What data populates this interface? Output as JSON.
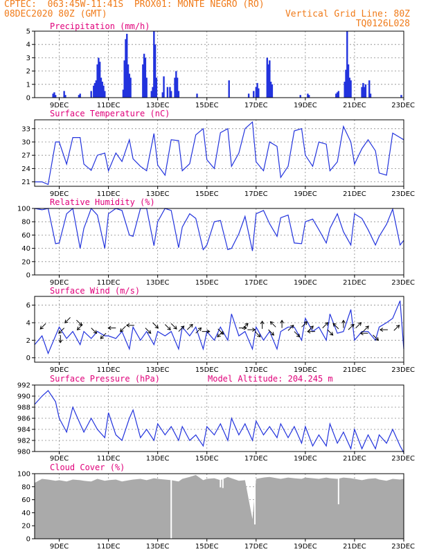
{
  "header": {
    "line1_left": "CPTEC:  063:45W-11:41S  PROX01: MONTE NEGRO (RO)",
    "line2_left": "08DEC2020 80Z (GMT)",
    "line2_right": "Vertical Grid Line: 80Z",
    "line3_right": "TQ0126L028"
  },
  "colors": {
    "header": "#f07b1a",
    "title": "#e0007a",
    "series": "#2233dd",
    "cloud": "#aaaaaa",
    "wind_arrow": "#000000"
  },
  "x_axis": {
    "start_day": 8,
    "end_day": 23,
    "date_labels": [
      "9DEC",
      "11DEC",
      "13DEC",
      "15DEC",
      "17DEC",
      "19DEC",
      "21DEC",
      "23DEC"
    ],
    "label_days": [
      9,
      11,
      13,
      15,
      17,
      19,
      21,
      23
    ]
  },
  "chart_data": [
    {
      "type": "bar",
      "title": "Precipitation (mm/h)",
      "ylim": [
        0,
        5
      ],
      "yticks": [
        0,
        1,
        2,
        3,
        4,
        5
      ],
      "units": "mm/h",
      "events": [
        [
          8.75,
          0.3
        ],
        [
          8.8,
          0.4
        ],
        [
          8.85,
          0.2
        ],
        [
          9.2,
          0.5
        ],
        [
          9.25,
          0.2
        ],
        [
          9.8,
          0.2
        ],
        [
          9.85,
          0.3
        ],
        [
          10.3,
          0.5
        ],
        [
          10.4,
          0.9
        ],
        [
          10.45,
          1.1
        ],
        [
          10.5,
          1.3
        ],
        [
          10.55,
          2.5
        ],
        [
          10.6,
          3.0
        ],
        [
          10.65,
          2.7
        ],
        [
          10.7,
          1.5
        ],
        [
          10.75,
          1.2
        ],
        [
          10.8,
          0.9
        ],
        [
          10.85,
          0.5
        ],
        [
          11.6,
          0.6
        ],
        [
          11.65,
          2.8
        ],
        [
          11.7,
          4.4
        ],
        [
          11.75,
          4.8
        ],
        [
          11.8,
          2.5
        ],
        [
          11.85,
          1.8
        ],
        [
          11.9,
          1.5
        ],
        [
          12.4,
          2.5
        ],
        [
          12.45,
          3.3
        ],
        [
          12.5,
          3.0
        ],
        [
          12.55,
          1.5
        ],
        [
          12.75,
          0.5
        ],
        [
          12.8,
          0.8
        ],
        [
          12.85,
          5.0
        ],
        [
          12.9,
          4.0
        ],
        [
          12.95,
          1.5
        ],
        [
          13.2,
          0.4
        ],
        [
          13.25,
          1.6
        ],
        [
          13.4,
          0.8
        ],
        [
          13.5,
          0.8
        ],
        [
          13.55,
          0.5
        ],
        [
          13.7,
          1.5
        ],
        [
          13.75,
          2.0
        ],
        [
          13.8,
          1.5
        ],
        [
          13.85,
          0.5
        ],
        [
          14.6,
          0.3
        ],
        [
          15.9,
          1.3
        ],
        [
          16.7,
          0.3
        ],
        [
          16.9,
          0.5
        ],
        [
          17.0,
          0.8
        ],
        [
          17.05,
          1.1
        ],
        [
          17.1,
          0.7
        ],
        [
          17.45,
          3.0
        ],
        [
          17.5,
          2.5
        ],
        [
          17.55,
          2.8
        ],
        [
          17.6,
          1.2
        ],
        [
          17.65,
          1.0
        ],
        [
          18.8,
          0.2
        ],
        [
          19.1,
          0.3
        ],
        [
          19.15,
          0.2
        ],
        [
          20.25,
          0.3
        ],
        [
          20.3,
          0.4
        ],
        [
          20.35,
          0.5
        ],
        [
          20.6,
          1.2
        ],
        [
          20.65,
          2.1
        ],
        [
          20.7,
          5.0
        ],
        [
          20.75,
          2.5
        ],
        [
          20.8,
          1.5
        ],
        [
          20.85,
          1.3
        ],
        [
          21.3,
          0.8
        ],
        [
          21.35,
          1.1
        ],
        [
          21.4,
          0.8
        ],
        [
          21.45,
          1.0
        ],
        [
          21.6,
          1.3
        ],
        [
          21.65,
          0.3
        ],
        [
          22.9,
          0.2
        ]
      ]
    },
    {
      "type": "line",
      "title": "Surface Temperature (nC)",
      "ylim": [
        20,
        35
      ],
      "yticks": [
        21,
        24,
        27,
        30,
        33
      ],
      "units": "nC",
      "x": [
        8.0,
        8.3,
        8.55,
        8.85,
        9.0,
        9.3,
        9.55,
        9.85,
        10.0,
        10.3,
        10.55,
        10.85,
        11.0,
        11.3,
        11.55,
        11.85,
        12.0,
        12.3,
        12.55,
        12.85,
        13.0,
        13.3,
        13.55,
        13.85,
        14.0,
        14.3,
        14.55,
        14.85,
        15.0,
        15.3,
        15.55,
        15.85,
        16.0,
        16.3,
        16.55,
        16.85,
        17.0,
        17.3,
        17.55,
        17.85,
        18.0,
        18.3,
        18.55,
        18.85,
        19.0,
        19.3,
        19.55,
        19.85,
        20.0,
        20.3,
        20.55,
        20.85,
        21.0,
        21.3,
        21.55,
        21.85,
        22.0,
        22.3,
        22.55,
        22.85,
        23.0
      ],
      "values": [
        21,
        21,
        20.4,
        30,
        30,
        25,
        31,
        31,
        25,
        23.6,
        27,
        27.5,
        23.5,
        27.5,
        25.6,
        30.5,
        26.2,
        24.5,
        23.5,
        31.9,
        24.8,
        22.5,
        30.5,
        30.3,
        23.5,
        25.1,
        31.6,
        33,
        26,
        24,
        32.1,
        33,
        24.5,
        27.5,
        33,
        34.5,
        25.5,
        23.5,
        30,
        29,
        22,
        24.5,
        32.5,
        33,
        27,
        24.5,
        30,
        29.5,
        23.5,
        25.5,
        33.5,
        30,
        25,
        28.5,
        30.5,
        28,
        23,
        22.5,
        32,
        31,
        30.5
      ]
    },
    {
      "type": "line",
      "title": "Relative Humidity (%)",
      "ylim": [
        0,
        100
      ],
      "yticks": [
        0,
        20,
        40,
        60,
        80,
        100
      ],
      "units": "%",
      "x": [
        8.0,
        8.3,
        8.55,
        8.85,
        9.0,
        9.3,
        9.55,
        9.85,
        10.0,
        10.3,
        10.55,
        10.85,
        11.0,
        11.3,
        11.55,
        11.85,
        12.0,
        12.3,
        12.55,
        12.85,
        13.0,
        13.3,
        13.55,
        13.85,
        14.0,
        14.3,
        14.55,
        14.85,
        15.0,
        15.3,
        15.55,
        15.85,
        16.0,
        16.3,
        16.55,
        16.85,
        17.0,
        17.3,
        17.55,
        17.85,
        18.0,
        18.3,
        18.55,
        18.85,
        19.0,
        19.3,
        19.55,
        19.85,
        20.0,
        20.3,
        20.55,
        20.85,
        21.0,
        21.3,
        21.55,
        21.85,
        22.0,
        22.3,
        22.55,
        22.85,
        23.0
      ],
      "values": [
        100,
        98,
        100,
        47,
        48,
        92,
        100,
        40,
        70,
        100,
        90,
        40,
        92,
        100,
        97,
        60,
        58,
        100,
        100,
        44,
        80,
        100,
        97,
        41,
        72,
        92,
        85,
        38,
        45,
        80,
        82,
        38,
        40,
        62,
        88,
        36,
        92,
        97,
        77,
        58,
        86,
        90,
        48,
        47,
        80,
        84,
        68,
        48,
        70,
        92,
        65,
        45,
        92,
        85,
        68,
        45,
        58,
        76,
        99,
        45,
        52
      ]
    },
    {
      "type": "line",
      "title": "Surface Wind (m/s)",
      "ylim": [
        -0.5,
        7
      ],
      "yticks": [
        0,
        2,
        4,
        6
      ],
      "units": "m/s",
      "x": [
        8.0,
        8.3,
        8.55,
        8.85,
        9.0,
        9.3,
        9.55,
        9.85,
        10.0,
        10.3,
        10.55,
        10.85,
        11.0,
        11.3,
        11.55,
        11.85,
        12.0,
        12.3,
        12.55,
        12.85,
        13.0,
        13.3,
        13.55,
        13.85,
        14.0,
        14.3,
        14.55,
        14.85,
        15.0,
        15.3,
        15.55,
        15.85,
        16.0,
        16.3,
        16.55,
        16.85,
        17.0,
        17.3,
        17.55,
        17.85,
        18.0,
        18.3,
        18.55,
        18.85,
        19.0,
        19.3,
        19.55,
        19.85,
        20.0,
        20.3,
        20.55,
        20.85,
        21.0,
        21.3,
        21.55,
        21.85,
        22.0,
        22.3,
        22.55,
        22.85,
        23.0
      ],
      "values": [
        1.5,
        2.5,
        0.5,
        2.5,
        3.5,
        2.2,
        3.0,
        1.5,
        3.0,
        2.2,
        3.0,
        2.5,
        2.5,
        2.2,
        3.0,
        1.0,
        3.5,
        2.0,
        3.0,
        1.5,
        3.0,
        2.5,
        3.0,
        1.0,
        3.5,
        2.5,
        3.5,
        1.0,
        3.0,
        2.0,
        3.5,
        2.0,
        5.0,
        2.5,
        3.0,
        1.0,
        3.5,
        2.0,
        3.0,
        1.0,
        3.0,
        3.5,
        3.5,
        2.0,
        4.5,
        3.0,
        3.5,
        2.0,
        5.0,
        2.8,
        3.0,
        5.5,
        2.0,
        3.0,
        3.0,
        2.0,
        3.5,
        4.0,
        4.5,
        6.5,
        1.0
      ],
      "arrows": [
        [
          8.45,
          3.9,
          -1,
          1
        ],
        [
          9.05,
          2.6,
          0,
          1
        ],
        [
          9.2,
          3.4,
          -1,
          1
        ],
        [
          9.45,
          4.6,
          -1,
          1
        ],
        [
          9.7,
          4.3,
          1,
          1
        ],
        [
          9.95,
          3.8,
          -1,
          1
        ],
        [
          10.3,
          3.4,
          1,
          1
        ],
        [
          10.9,
          2.8,
          -1,
          1
        ],
        [
          11.3,
          3.4,
          -1,
          0
        ],
        [
          11.7,
          3.6,
          -1,
          1
        ],
        [
          12.05,
          3.7,
          -1,
          0
        ],
        [
          12.5,
          3.4,
          1,
          1
        ],
        [
          12.8,
          4.0,
          1,
          1
        ],
        [
          13.3,
          3.8,
          1,
          1
        ],
        [
          13.55,
          3.9,
          1,
          1
        ],
        [
          13.85,
          3.0,
          1,
          -1
        ],
        [
          14.2,
          3.2,
          1,
          -1
        ],
        [
          14.55,
          2.8,
          1,
          -1
        ],
        [
          14.8,
          3.0,
          1,
          0
        ],
        [
          15.45,
          3.3,
          1,
          1
        ],
        [
          15.65,
          3.0,
          -1,
          1
        ],
        [
          16.3,
          3.4,
          1,
          0
        ],
        [
          16.45,
          3.3,
          1,
          -1
        ],
        [
          16.65,
          3.2,
          1,
          0
        ],
        [
          16.95,
          3.0,
          1,
          1
        ],
        [
          17.25,
          3.3,
          0,
          -1
        ],
        [
          17.5,
          3.2,
          1,
          1
        ],
        [
          17.8,
          3.5,
          -1,
          -1
        ],
        [
          18.05,
          3.4,
          0,
          -1
        ],
        [
          18.3,
          3.1,
          1,
          -1
        ],
        [
          18.55,
          3.0,
          1,
          1
        ],
        [
          18.85,
          3.5,
          1,
          -1
        ],
        [
          19.1,
          3.0,
          1,
          -1
        ],
        [
          19.4,
          3.0,
          -1,
          0
        ],
        [
          19.7,
          3.4,
          1,
          -1
        ],
        [
          19.9,
          3.2,
          1,
          1
        ],
        [
          20.35,
          3.3,
          -1,
          -1
        ],
        [
          20.55,
          3.4,
          0,
          -1
        ],
        [
          20.75,
          3.2,
          1,
          -1
        ],
        [
          21.05,
          3.4,
          1,
          -1
        ],
        [
          21.35,
          3.0,
          1,
          -1
        ],
        [
          21.55,
          2.8,
          -1,
          0
        ],
        [
          21.75,
          2.6,
          1,
          1
        ],
        [
          22.35,
          3.2,
          -1,
          0
        ],
        [
          22.6,
          3.1,
          1,
          -1
        ]
      ]
    },
    {
      "type": "line",
      "title": "Surface Pressure (hPa)",
      "subtitle": "Model Altitude: 204.245 m",
      "ylim": [
        980,
        992
      ],
      "yticks": [
        980,
        982,
        984,
        986,
        988,
        990,
        992
      ],
      "units": "hPa",
      "x": [
        8.0,
        8.3,
        8.55,
        8.85,
        9.0,
        9.3,
        9.55,
        9.85,
        10.0,
        10.3,
        10.55,
        10.85,
        11.0,
        11.3,
        11.55,
        11.85,
        12.0,
        12.3,
        12.55,
        12.85,
        13.0,
        13.3,
        13.55,
        13.85,
        14.0,
        14.3,
        14.55,
        14.85,
        15.0,
        15.3,
        15.55,
        15.85,
        16.0,
        16.3,
        16.55,
        16.85,
        17.0,
        17.3,
        17.55,
        17.85,
        18.0,
        18.3,
        18.55,
        18.85,
        19.0,
        19.3,
        19.55,
        19.85,
        20.0,
        20.3,
        20.55,
        20.85,
        21.0,
        21.3,
        21.55,
        21.85,
        22.0,
        22.3,
        22.55,
        22.85,
        23.0
      ],
      "values": [
        988.5,
        990,
        991,
        989,
        986,
        983.5,
        988,
        985,
        983.5,
        986,
        984,
        982.5,
        987,
        983,
        982,
        986,
        987.5,
        982.5,
        984,
        982,
        985,
        983,
        984.5,
        982,
        984.5,
        982,
        983,
        981,
        984.5,
        983,
        985,
        982,
        986,
        983,
        985,
        982,
        985.5,
        983,
        984.5,
        982.5,
        985,
        982.5,
        984.5,
        981.5,
        984.5,
        981,
        983,
        981,
        985,
        981.5,
        983.5,
        980.5,
        984,
        980.5,
        983,
        980.5,
        983,
        981.5,
        984,
        981,
        979.8
      ]
    },
    {
      "type": "area",
      "title": "Cloud Cover (%)",
      "ylim": [
        0,
        100
      ],
      "yticks": [
        0,
        20,
        40,
        60,
        80,
        100
      ],
      "units": "%",
      "x": [
        8.0,
        8.3,
        8.55,
        8.85,
        9.0,
        9.3,
        9.55,
        9.85,
        10.0,
        10.3,
        10.55,
        10.85,
        11.0,
        11.3,
        11.55,
        11.85,
        12.0,
        12.3,
        12.55,
        12.85,
        13.0,
        13.3,
        13.55,
        13.85,
        14.0,
        14.3,
        14.55,
        14.85,
        15.0,
        15.3,
        15.55,
        15.85,
        16.0,
        16.3,
        16.55,
        16.85,
        17.0,
        17.3,
        17.55,
        17.85,
        18.0,
        18.3,
        18.55,
        18.85,
        19.0,
        19.3,
        19.55,
        19.85,
        20.0,
        20.3,
        20.55,
        20.85,
        21.0,
        21.3,
        21.55,
        21.85,
        22.0,
        22.3,
        22.55,
        22.85,
        23.0
      ],
      "values": [
        86,
        92,
        91,
        89,
        90,
        88,
        91,
        90,
        89,
        88,
        92,
        89,
        90,
        91,
        88,
        90,
        91,
        92,
        90,
        93,
        92,
        91,
        90,
        88,
        92,
        95,
        98,
        90,
        92,
        93,
        90,
        95,
        93,
        89,
        90,
        30,
        92,
        94,
        95,
        93,
        92,
        94,
        93,
        92,
        94,
        93,
        92,
        94,
        93,
        92,
        94,
        93,
        92,
        90,
        92,
        93,
        91,
        89,
        92,
        91,
        92
      ],
      "dips": [
        [
          13.55,
          0
        ],
        [
          16.95,
          22
        ],
        [
          20.35,
          53
        ],
        [
          15.55,
          79
        ],
        [
          15.65,
          78
        ]
      ]
    }
  ]
}
